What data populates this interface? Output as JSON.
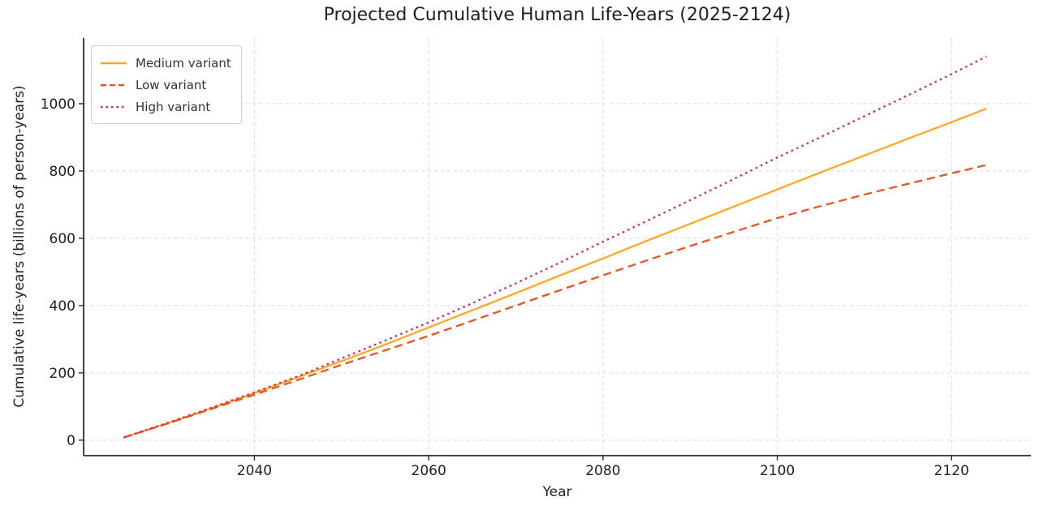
{
  "title": "Projected Cumulative Human Life-Years (2025-2124)",
  "chart_data": {
    "type": "line",
    "title": "Projected Cumulative Human Life-Years (2025-2124)",
    "xlabel": "Year",
    "ylabel": "Cumulative life-years (billions of person-years)",
    "xlim": [
      2020.4,
      2129.1
    ],
    "ylim": [
      -46,
      1195
    ],
    "x_ticks": [
      2040,
      2060,
      2080,
      2100,
      2120
    ],
    "y_ticks": [
      0,
      200,
      400,
      600,
      800,
      1000
    ],
    "grid": "dashed",
    "legend_position": "upper-left",
    "x": [
      2025,
      2030,
      2035,
      2040,
      2045,
      2050,
      2055,
      2060,
      2065,
      2070,
      2075,
      2080,
      2085,
      2090,
      2095,
      2100,
      2105,
      2110,
      2115,
      2120,
      2124
    ],
    "series": [
      {
        "name": "Medium variant",
        "style": "solid",
        "color": "#ffa820",
        "values": [
          8,
          50,
          94,
          140,
          187,
          235,
          284,
          335,
          386,
          437,
          489,
          540,
          592,
          643,
          694,
          745,
          796,
          846,
          896,
          945,
          985
        ]
      },
      {
        "name": "Low variant",
        "style": "dashed",
        "color": "#e95420",
        "values": [
          8,
          49,
          92,
          135,
          179,
          224,
          267,
          310,
          355,
          400,
          445,
          490,
          534,
          577,
          619,
          660,
          696,
          730,
          762,
          793,
          818
        ]
      },
      {
        "name": "High variant",
        "style": "dotted",
        "color": "#d62864",
        "values": [
          8,
          51,
          96,
          142,
          190,
          243,
          296,
          350,
          407,
          466,
          527,
          590,
          651,
          713,
          776,
          840,
          901,
          963,
          1025,
          1088,
          1140
        ]
      }
    ]
  },
  "colors": {
    "grid": "#d9d9d9",
    "spine": "#2b2b2b",
    "text": "#1f1f1f"
  }
}
